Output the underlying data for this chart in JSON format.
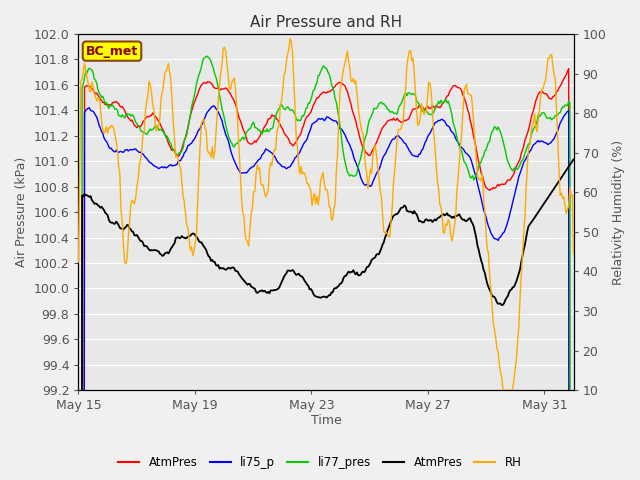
{
  "title": "Air Pressure and RH",
  "xlabel": "Time",
  "ylabel_left": "Air Pressure (kPa)",
  "ylabel_right": "Relativity Humidity (%)",
  "ylim_left": [
    99.2,
    102.0
  ],
  "ylim_right": [
    10,
    100
  ],
  "yticks_left": [
    99.2,
    99.4,
    99.6,
    99.8,
    100.0,
    100.2,
    100.4,
    100.6,
    100.8,
    101.0,
    101.2,
    101.4,
    101.6,
    101.8,
    102.0
  ],
  "yticks_right": [
    10,
    20,
    30,
    40,
    50,
    60,
    70,
    80,
    90,
    100
  ],
  "xtick_positions": [
    0,
    4,
    8,
    12,
    16
  ],
  "xtick_labels": [
    "May 15",
    "May 19",
    "May 23",
    "May 27",
    "May 31"
  ],
  "legend_labels": [
    "AtmPres",
    "li75_p",
    "li77_pres",
    "AtmPres",
    "RH"
  ],
  "legend_colors": [
    "#ff0000",
    "#0000ff",
    "#00cc00",
    "#000000",
    "#ffaa00"
  ],
  "line_colors": {
    "AtmPres_red": "#ff0000",
    "li75_p": "#0000ff",
    "li77_pres": "#00cc00",
    "AtmPres_black": "#000000",
    "RH": "#ffaa00"
  },
  "bg_color": "#e8e8e8",
  "fig_bg_color": "#f0f0f0",
  "annotation_text": "BC_met",
  "annotation_box_color": "#ffff00",
  "annotation_border_color": "#8B4513",
  "title_fontsize": 11,
  "label_fontsize": 9,
  "tick_fontsize": 9,
  "tick_color": "#555555",
  "title_color": "#333333"
}
